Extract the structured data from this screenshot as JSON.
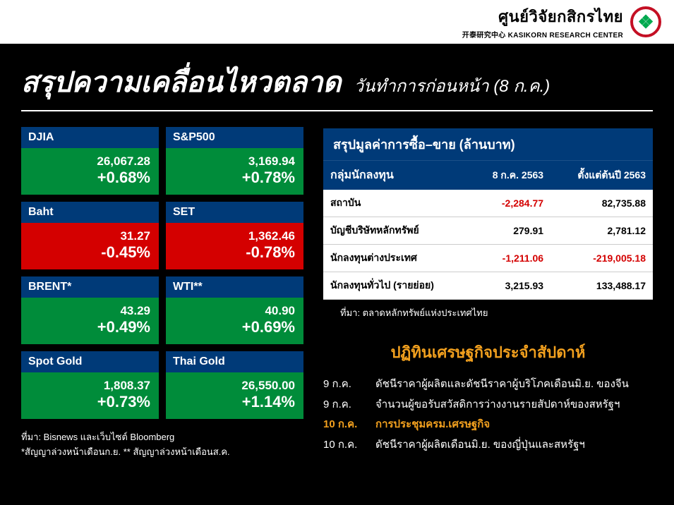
{
  "brand": {
    "name_th": "ศูนย์วิจัยกสิกรไทย",
    "name_sub": "开泰研究中心 KASIKORN RESEARCH CENTER",
    "logo_glyph": "❖"
  },
  "title": {
    "main": "สรุปความเคลื่อนไหวตลาด",
    "sub": "วันทำการก่อนหน้า (8 ก.ค.)"
  },
  "colors": {
    "background": "#000000",
    "header_bg": "#ffffff",
    "tile_label_bg": "#003a78",
    "up_bg": "#008c3a",
    "down_bg": "#d40000",
    "table_header_bg": "#003a78",
    "accent": "#f2a01e",
    "negative_text": "#d40000"
  },
  "tiles": [
    {
      "label": "DJIA",
      "value": "26,067.28",
      "change": "+0.68%",
      "direction": "up"
    },
    {
      "label": "S&P500",
      "value": "3,169.94",
      "change": "+0.78%",
      "direction": "up"
    },
    {
      "label": "Baht",
      "value": "31.27",
      "change": "-0.45%",
      "direction": "down"
    },
    {
      "label": "SET",
      "value": "1,362.46",
      "change": "-0.78%",
      "direction": "down"
    },
    {
      "label": "BRENT*",
      "value": "43.29",
      "change": "+0.49%",
      "direction": "up"
    },
    {
      "label": "WTI**",
      "value": "40.90",
      "change": "+0.69%",
      "direction": "up"
    },
    {
      "label": "Spot Gold",
      "value": "1,808.37",
      "change": "+0.73%",
      "direction": "up"
    },
    {
      "label": "Thai Gold",
      "value": "26,550.00",
      "change": "+1.14%",
      "direction": "up"
    }
  ],
  "tile_source": {
    "line1": "ที่มา: Bisnews และเว็บไซต์ Bloomberg",
    "line2": "*สัญญาล่วงหน้าเดือนก.ย. ** สัญญาล่วงหน้าเดือนส.ค."
  },
  "trade_table": {
    "title": "สรุปมูลค่าการซื้อ–ขาย (ล้านบาท)",
    "columns": [
      "กลุ่มนักลงทุน",
      "8 ก.ค. 2563",
      "ตั้งแต่ต้นปี 2563"
    ],
    "rows": [
      {
        "label": "สถาบัน",
        "c1": "-2,284.77",
        "c1_neg": true,
        "c2": "82,735.88",
        "c2_neg": false
      },
      {
        "label": "บัญชีบริษัทหลักทรัพย์",
        "c1": "279.91",
        "c1_neg": false,
        "c2": "2,781.12",
        "c2_neg": false
      },
      {
        "label": "นักลงทุนต่างประเทศ",
        "c1": "-1,211.06",
        "c1_neg": true,
        "c2": "-219,005.18",
        "c2_neg": true
      },
      {
        "label": "นักลงทุนทั่วไป (รายย่อย)",
        "c1": "3,215.93",
        "c1_neg": false,
        "c2": "133,488.17",
        "c2_neg": false
      }
    ],
    "source": "ที่มา: ตลาดหลักทรัพย์แห่งประเทศไทย"
  },
  "calendar": {
    "title": "ปฏิทินเศรษฐกิจประจำสัปดาห์",
    "items": [
      {
        "date": "9 ก.ค.",
        "text": "ดัชนีราคาผู้ผลิตและดัชนีราคาผู้บริโภคเดือนมิ.ย. ของจีน",
        "highlight": false
      },
      {
        "date": "9 ก.ค.",
        "text": "จำนวนผู้ขอรับสวัสดิการว่างงานรายสัปดาห์ของสหรัฐฯ",
        "highlight": false
      },
      {
        "date": "10 ก.ค.",
        "text": "การประชุมครม.เศรษฐกิจ",
        "highlight": true
      },
      {
        "date": "10 ก.ค.",
        "text": "ดัชนีราคาผู้ผลิตเดือนมิ.ย. ของญี่ปุ่นและสหรัฐฯ",
        "highlight": false
      }
    ]
  }
}
